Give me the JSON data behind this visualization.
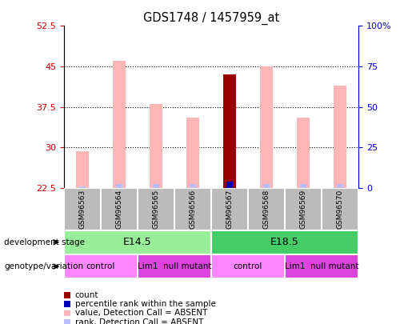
{
  "title": "GDS1748 / 1457959_at",
  "samples": [
    "GSM96563",
    "GSM96564",
    "GSM96565",
    "GSM96566",
    "GSM96567",
    "GSM96568",
    "GSM96569",
    "GSM96570"
  ],
  "count_values": [
    null,
    null,
    null,
    null,
    43.5,
    null,
    null,
    null
  ],
  "rank_values": [
    null,
    null,
    null,
    null,
    23.7,
    null,
    null,
    null
  ],
  "absent_value_bars": [
    29.3,
    46.0,
    38.0,
    35.5,
    null,
    45.0,
    35.5,
    41.5
  ],
  "absent_rank_bars": [
    22.85,
    23.3,
    23.2,
    23.2,
    null,
    23.3,
    23.2,
    23.3
  ],
  "ylim_left": [
    22.5,
    52.5
  ],
  "ylim_right": [
    0,
    100
  ],
  "yticks_left": [
    22.5,
    30.0,
    37.5,
    45.0,
    52.5
  ],
  "ytick_labels_left": [
    "22.5",
    "30",
    "37.5",
    "45",
    "52.5"
  ],
  "yticks_right": [
    0,
    25,
    50,
    75,
    100
  ],
  "ytick_labels_right": [
    "0",
    "25",
    "50",
    "75",
    "100%"
  ],
  "development_stage_groups": [
    {
      "label": "E14.5",
      "start": 0,
      "end": 3,
      "color": "#99EE99"
    },
    {
      "label": "E18.5",
      "start": 4,
      "end": 7,
      "color": "#44CC66"
    }
  ],
  "genotype_groups": [
    {
      "label": "control",
      "start": 0,
      "end": 1,
      "color": "#FF88FF"
    },
    {
      "label": "Lim1  null mutant",
      "start": 2,
      "end": 3,
      "color": "#DD44DD"
    },
    {
      "label": "control",
      "start": 4,
      "end": 5,
      "color": "#FF88FF"
    },
    {
      "label": "Lim1  null mutant",
      "start": 6,
      "end": 7,
      "color": "#DD44DD"
    }
  ],
  "bar_width": 0.35,
  "rank_bar_width": 0.18,
  "absent_value_color": "#FFB6B6",
  "absent_rank_color": "#BBBBFF",
  "count_color": "#990000",
  "rank_color": "#0000BB",
  "axis_color_left": "#CC0000",
  "axis_color_right": "#0000CC",
  "bg_color_xtick": "#BBBBBB",
  "legend_items": [
    {
      "label": "count",
      "color": "#990000"
    },
    {
      "label": "percentile rank within the sample",
      "color": "#0000BB"
    },
    {
      "label": "value, Detection Call = ABSENT",
      "color": "#FFB6B6"
    },
    {
      "label": "rank, Detection Call = ABSENT",
      "color": "#BBBBFF"
    }
  ]
}
